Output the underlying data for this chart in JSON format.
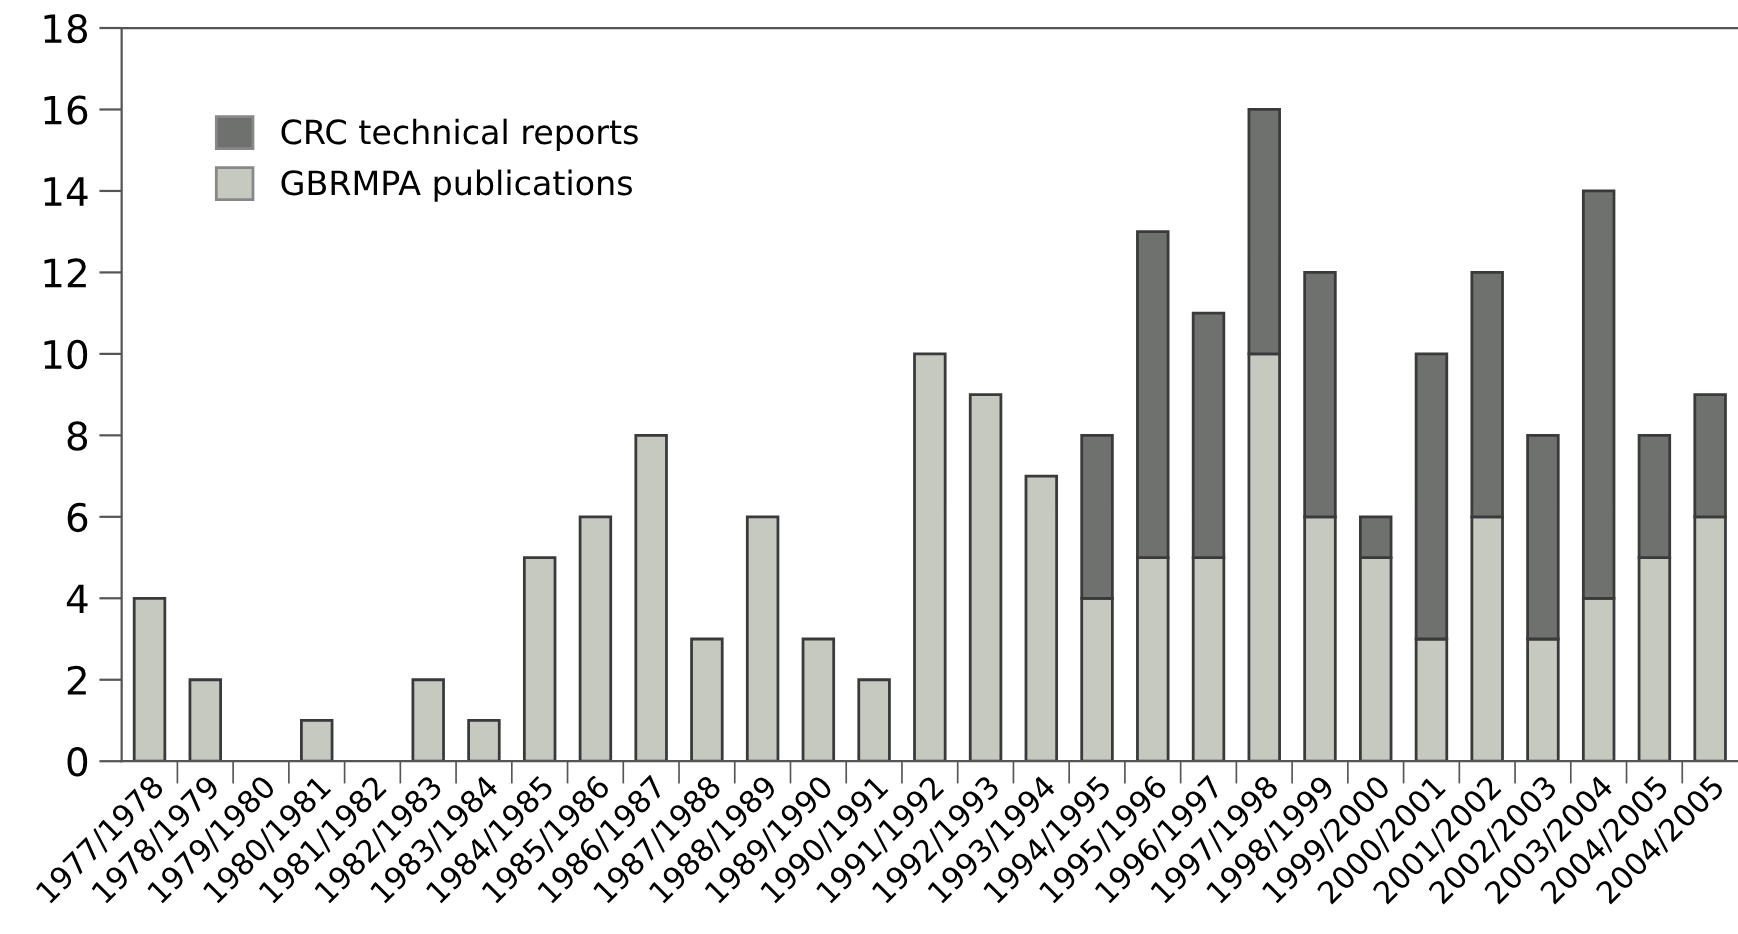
{
  "chart_data": {
    "type": "bar",
    "stacked": true,
    "categories": [
      "1977/1978",
      "1978/1979",
      "1979/1980",
      "1980/1981",
      "1981/1982",
      "1982/1983",
      "1983/1984",
      "1984/1985",
      "1985/1986",
      "1986/1987",
      "1987/1988",
      "1988/1989",
      "1989/1990",
      "1990/1991",
      "1991/1992",
      "1992/1993",
      "1993/1994",
      "1994/1995",
      "1995/1996",
      "1996/1997",
      "1997/1998",
      "1998/1999",
      "1999/2000",
      "2000/2001",
      "2001/2002",
      "2002/2003",
      "2003/2004",
      "2004/2005",
      "2004/2005"
    ],
    "series": [
      {
        "name": "GBRMPA publications",
        "color": "#c5c9c0",
        "values": [
          4,
          2,
          0,
          1,
          0,
          2,
          1,
          5,
          6,
          8,
          3,
          6,
          3,
          2,
          10,
          9,
          7,
          4,
          5,
          5,
          10,
          6,
          5,
          3,
          6,
          3,
          4,
          5,
          6
        ]
      },
      {
        "name": "CRC technical reports",
        "color": "#6e716e",
        "values": [
          null,
          null,
          null,
          null,
          null,
          null,
          null,
          null,
          null,
          null,
          null,
          null,
          null,
          null,
          null,
          null,
          null,
          4,
          8,
          6,
          6,
          6,
          1,
          7,
          6,
          5,
          10,
          3,
          3
        ]
      }
    ],
    "ylim": [
      0,
      18
    ],
    "yticks": [
      0,
      2,
      4,
      6,
      8,
      10,
      12,
      14,
      16,
      18
    ],
    "grid": false,
    "legend": "top left"
  }
}
